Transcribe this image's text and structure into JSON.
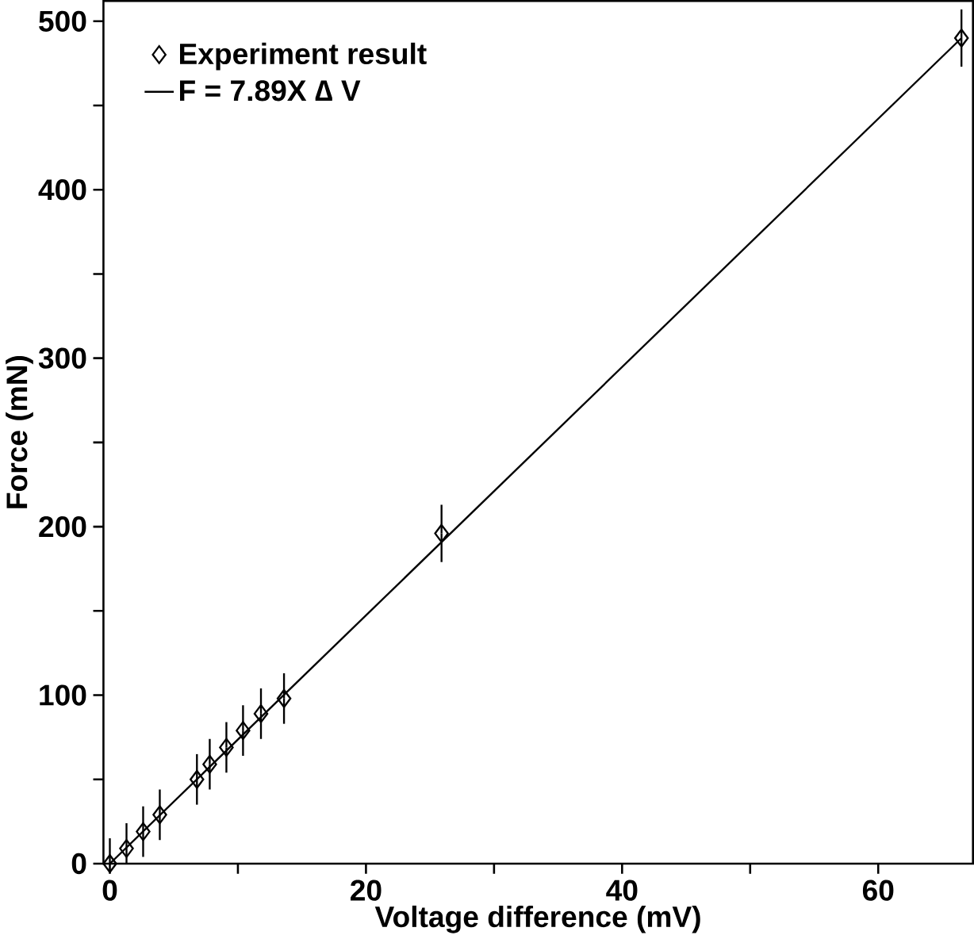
{
  "chart_data": {
    "type": "scatter",
    "xlabel": "Voltage difference (mV)",
    "ylabel": "Force (mN)",
    "xlim": [
      -0.5,
      67.4
    ],
    "ylim": [
      0,
      512
    ],
    "xticks": [
      0,
      {
        "value": 10,
        "label": null
      },
      20,
      {
        "value": 30,
        "label": null
      },
      40,
      {
        "value": 50,
        "label": null
      },
      60
    ],
    "yticks": [
      0,
      {
        "value": 50,
        "label": null
      },
      100,
      {
        "value": 150,
        "label": null
      },
      200,
      {
        "value": 250,
        "label": null
      },
      300,
      {
        "value": 350,
        "label": null
      },
      400,
      {
        "value": 450,
        "label": null
      },
      500
    ],
    "legend": "top left",
    "grid": false,
    "series": [
      {
        "name": "Experiment result",
        "color": "#000000",
        "marker": "diamond",
        "x": [
          0,
          1.3,
          2.6,
          3.9,
          6.8,
          7.8,
          9.1,
          10.4,
          11.8,
          13.6,
          25.9,
          66.5
        ],
        "values": [
          0,
          9,
          19,
          29,
          50,
          59,
          69,
          79,
          89,
          98,
          196,
          490
        ],
        "errors": [
          15,
          15,
          15,
          15,
          15,
          15,
          15,
          15,
          15,
          15,
          17,
          17
        ]
      },
      {
        "name": "F = 7.89X ∆ V",
        "type": "line",
        "color": "#000000",
        "marker": "none",
        "line_style": "solid",
        "x": [
          0,
          66.5
        ],
        "values": [
          0,
          490
        ]
      }
    ]
  }
}
